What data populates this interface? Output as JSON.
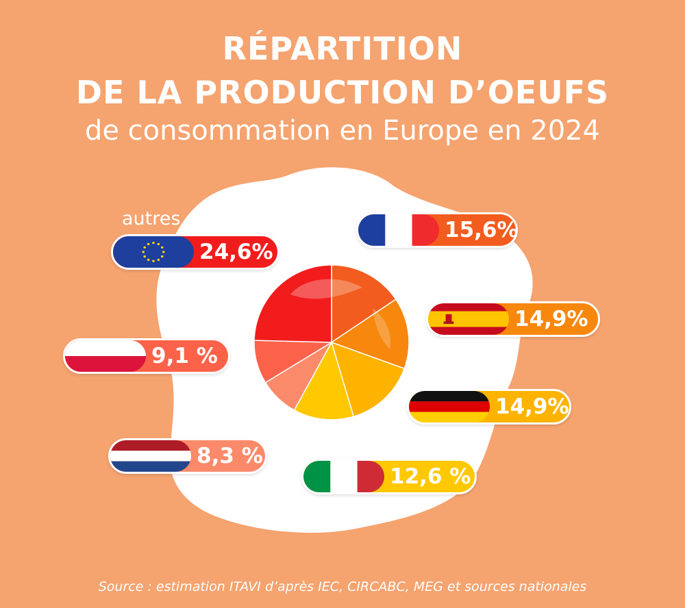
{
  "title": {
    "line1": "RÉPARTITION",
    "line2": "DE LA PRODUCTION D’OEUFS",
    "subtitle": "de consommation en Europe en 2024"
  },
  "source": "Source : estimation ITAVI d’après IEC, CIRCABC, MEG et sources nationales",
  "colors": {
    "background": "#f5a36f",
    "egg_white": "#ffffff"
  },
  "chart_data": {
    "type": "pie",
    "title": "RÉPARTITION DE LA PRODUCTION D’OEUFS de consommation en Europe en 2024",
    "unit": "%",
    "slices": [
      {
        "name": "France",
        "value": 15.6,
        "label": "15,6%",
        "color": "#f25c1e",
        "flag": "france-flag"
      },
      {
        "name": "Espagne",
        "value": 14.9,
        "label": "14,9%",
        "color": "#f7870d",
        "flag": "spain-flag"
      },
      {
        "name": "Allemagne",
        "value": 14.9,
        "label": "14,9%",
        "color": "#fdb300",
        "flag": "germany-flag"
      },
      {
        "name": "Italie",
        "value": 12.6,
        "label": "12,6 %",
        "color": "#ffc800",
        "flag": "italy-flag"
      },
      {
        "name": "Pays-Bas",
        "value": 8.3,
        "label": "8,3 %",
        "color": "#fb8a6a",
        "flag": "netherlands-flag"
      },
      {
        "name": "Pologne",
        "value": 9.1,
        "label": "9,1 %",
        "color": "#fb6249",
        "flag": "poland-flag"
      },
      {
        "name": "autres",
        "value": 24.6,
        "label": "24,6%",
        "color": "#f21c1c",
        "flag": "eu-flag",
        "caption": "autres"
      }
    ]
  }
}
